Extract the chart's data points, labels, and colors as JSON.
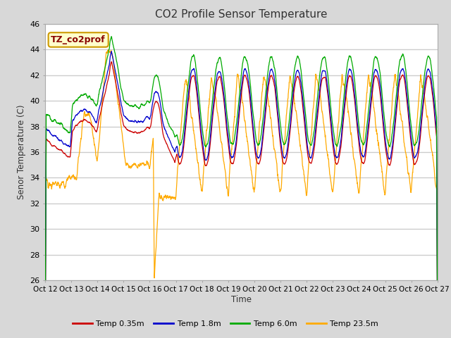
{
  "title": "CO2 Profile Sensor Temperature",
  "ylabel": "Senor Temperature (C)",
  "xlabel": "Time",
  "annotation": "TZ_co2prof",
  "ylim": [
    26,
    46
  ],
  "yticks": [
    26,
    28,
    30,
    32,
    34,
    36,
    38,
    40,
    42,
    44,
    46
  ],
  "xtick_labels": [
    "Oct 12",
    "Oct 13",
    "Oct 14",
    "Oct 15",
    "Oct 16",
    "Oct 17",
    "Oct 18",
    "Oct 19",
    "Oct 20",
    "Oct 21",
    "Oct 22",
    "Oct 23",
    "Oct 24",
    "Oct 25",
    "Oct 26",
    "Oct 27"
  ],
  "colors": {
    "red": "#cc0000",
    "blue": "#0000cc",
    "green": "#00aa00",
    "orange": "#ffaa00"
  },
  "legend": [
    "Temp 0.35m",
    "Temp 1.8m",
    "Temp 6.0m",
    "Temp 23.5m"
  ],
  "fig_bg": "#d8d8d8",
  "plot_bg": "#ffffff"
}
